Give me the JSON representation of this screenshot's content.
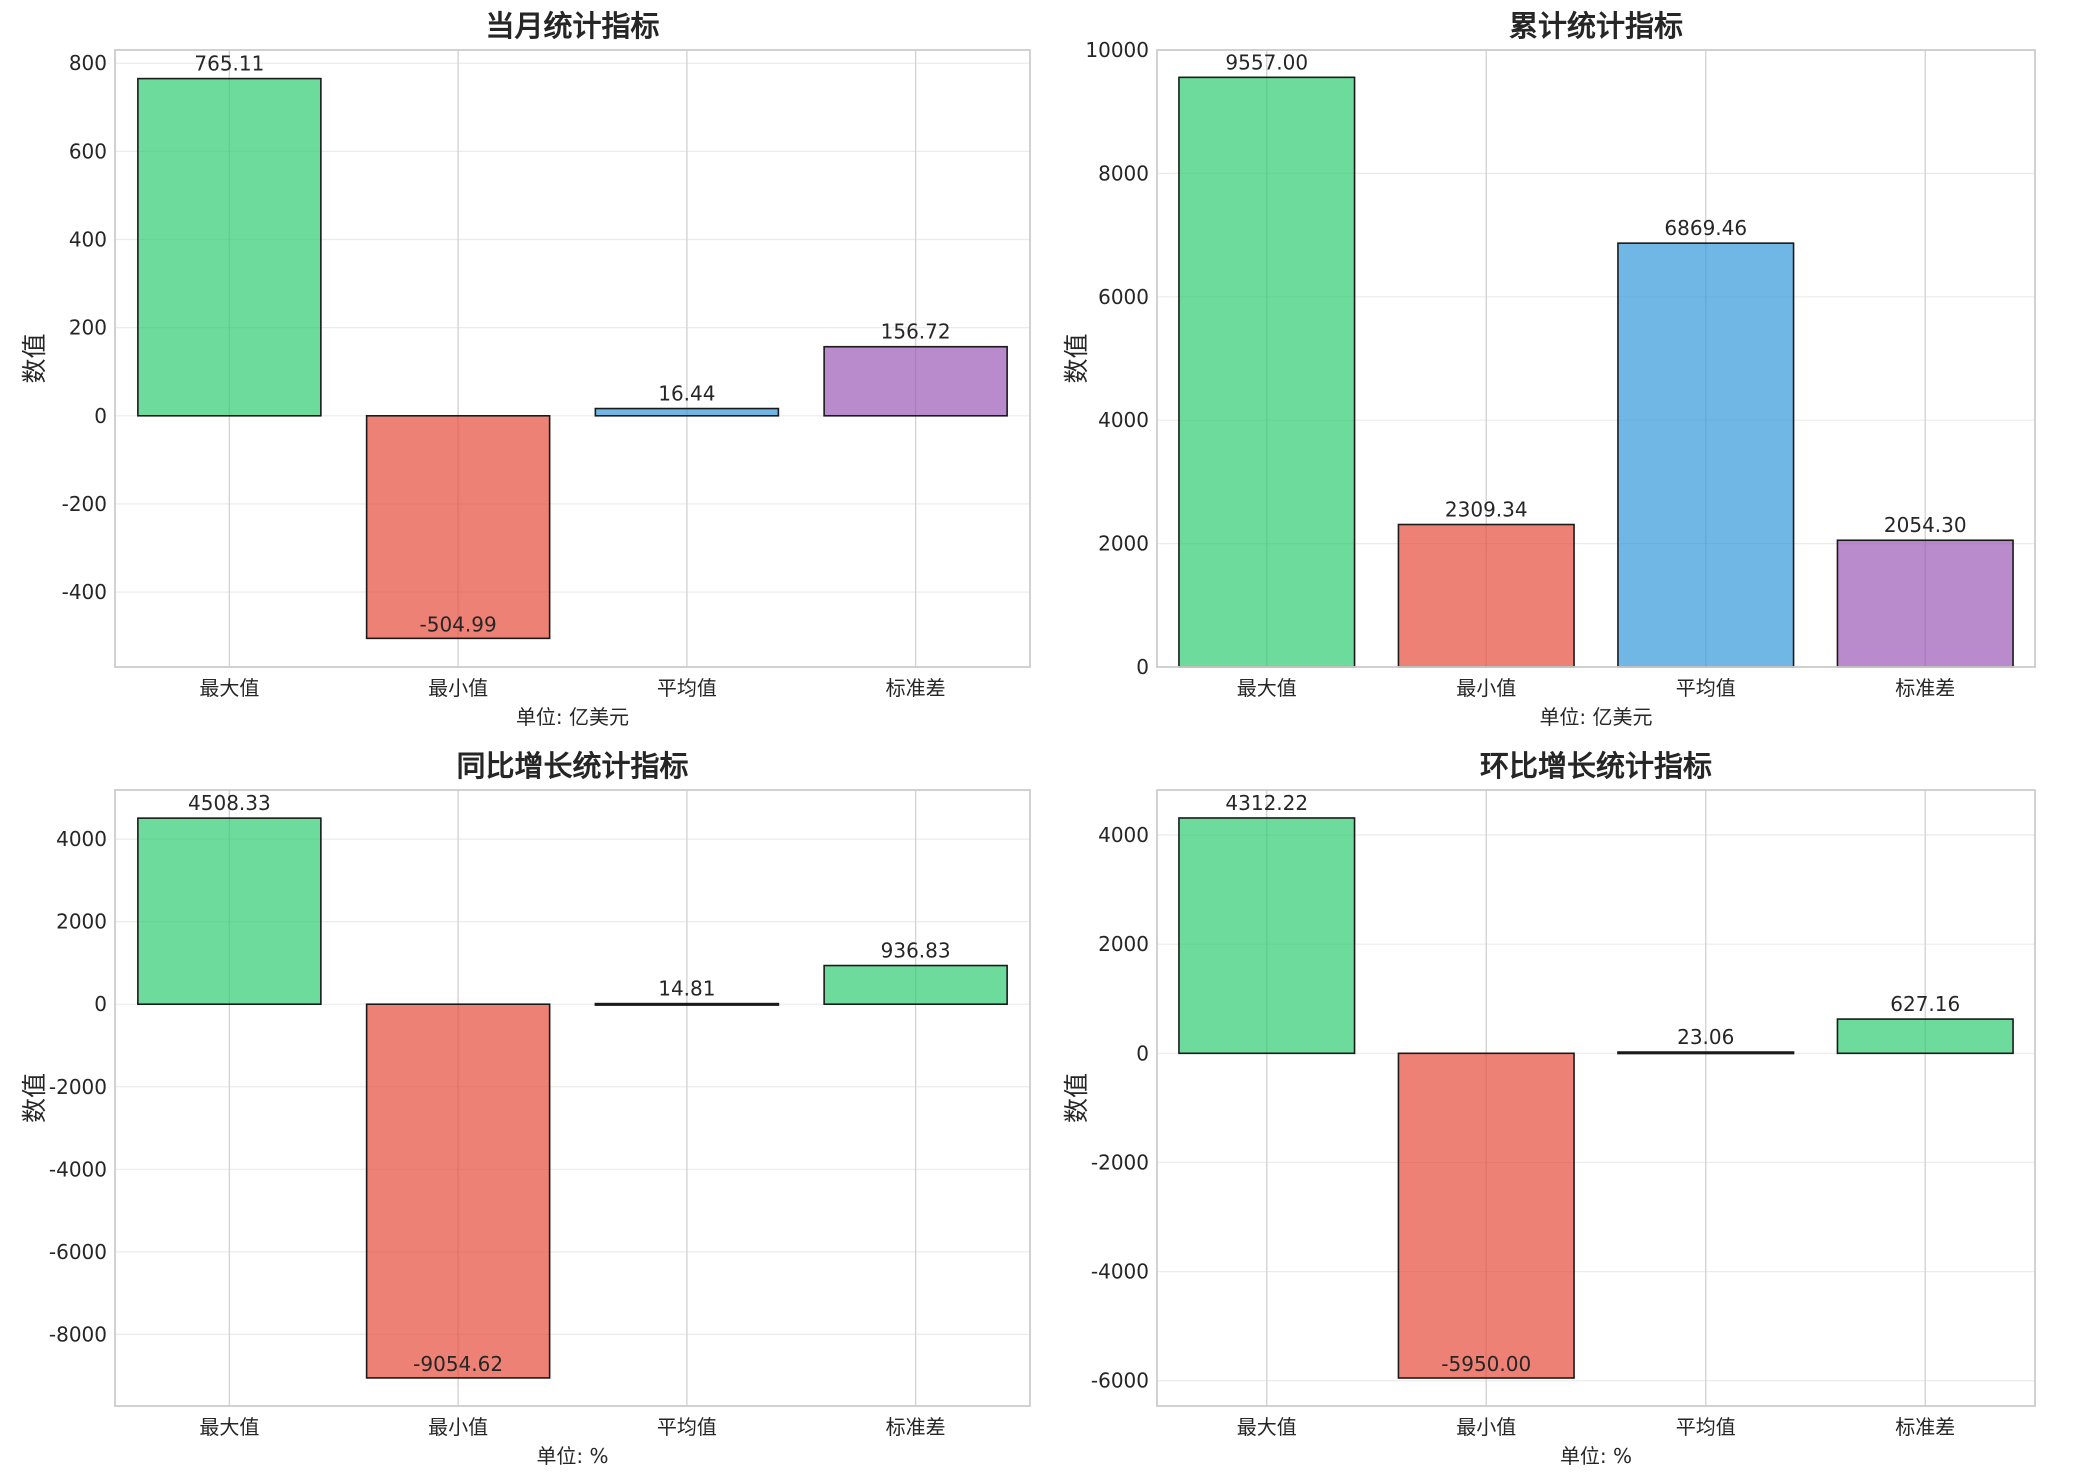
{
  "chart_data": [
    {
      "type": "bar",
      "title": "当月统计指标",
      "xlabel": "单位: 亿美元",
      "ylabel": "数值",
      "categories": [
        "最大值",
        "最小值",
        "平均值",
        "标准差"
      ],
      "values": [
        765.11,
        -504.99,
        16.44,
        156.72
      ],
      "value_labels": [
        "765.11",
        "-504.99",
        "16.44",
        "156.72"
      ],
      "colors": [
        "#2ecc71",
        "#e74c3c",
        "#3498db",
        "#9b59b6"
      ],
      "ylim": [
        -570,
        830
      ],
      "yticks": [
        -400,
        -200,
        0,
        200,
        400,
        600,
        800
      ],
      "grid": true
    },
    {
      "type": "bar",
      "title": "累计统计指标",
      "xlabel": "单位: 亿美元",
      "ylabel": "数值",
      "categories": [
        "最大值",
        "最小值",
        "平均值",
        "标准差"
      ],
      "values": [
        9557.0,
        2309.34,
        6869.46,
        2054.3
      ],
      "value_labels": [
        "9557.00",
        "2309.34",
        "6869.46",
        "2054.30"
      ],
      "colors": [
        "#2ecc71",
        "#e74c3c",
        "#3498db",
        "#9b59b6"
      ],
      "ylim": [
        0,
        10000
      ],
      "yticks": [
        0,
        2000,
        4000,
        6000,
        8000,
        10000
      ],
      "grid": true
    },
    {
      "type": "bar",
      "title": "同比增长统计指标",
      "xlabel": "单位: %",
      "ylabel": "数值",
      "categories": [
        "最大值",
        "最小值",
        "平均值",
        "标准差"
      ],
      "values": [
        4508.33,
        -9054.62,
        14.81,
        936.83
      ],
      "value_labels": [
        "4508.33",
        "-9054.62",
        "14.81",
        "936.83"
      ],
      "colors": [
        "#2ecc71",
        "#e74c3c",
        "#2ecc71",
        "#2ecc71"
      ],
      "ylim": [
        -9735,
        5190
      ],
      "yticks": [
        -8000,
        -6000,
        -4000,
        -2000,
        0,
        2000,
        4000
      ],
      "grid": true
    },
    {
      "type": "bar",
      "title": "环比增长统计指标",
      "xlabel": "单位: %",
      "ylabel": "数值",
      "categories": [
        "最大值",
        "最小值",
        "平均值",
        "标准差"
      ],
      "values": [
        4312.22,
        -5950.0,
        23.06,
        627.16
      ],
      "value_labels": [
        "4312.22",
        "-5950.00",
        "23.06",
        "627.16"
      ],
      "colors": [
        "#2ecc71",
        "#e74c3c",
        "#2ecc71",
        "#2ecc71"
      ],
      "ylim": [
        -6463,
        4825
      ],
      "yticks": [
        -6000,
        -4000,
        -2000,
        0,
        2000,
        4000
      ],
      "grid": true
    }
  ]
}
